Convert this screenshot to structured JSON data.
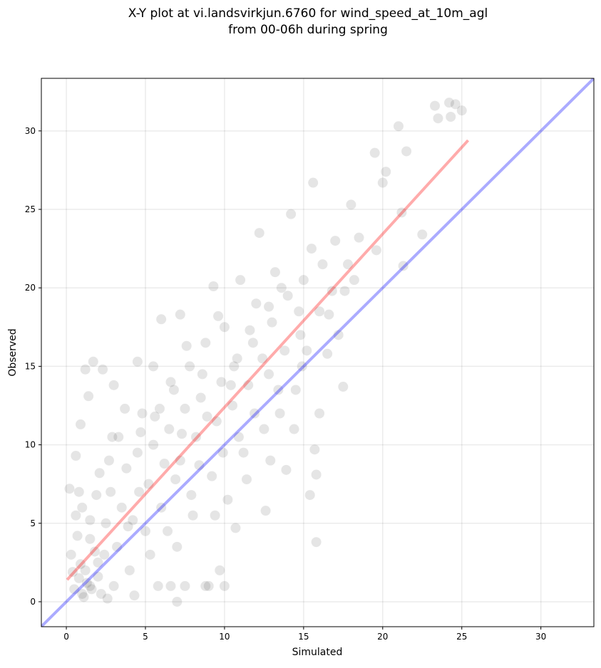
{
  "chart_data": {
    "type": "scatter",
    "title": [
      "X-Y plot at vi.landsvirkjun.6760 for wind_speed_at_10m_agl",
      "from 00-06h during spring"
    ],
    "xlabel": "Simulated",
    "ylabel": "Observed",
    "xlim": [
      -1.58,
      33.35
    ],
    "ylim": [
      -1.59,
      33.35
    ],
    "xticks": [
      0,
      5,
      10,
      15,
      20,
      25,
      30
    ],
    "yticks": [
      0,
      5,
      10,
      15,
      20,
      25,
      30
    ],
    "grid": true,
    "point_color": "#000000",
    "point_opacity": 0.1,
    "x": [
      0.5,
      0.8,
      1.0,
      1.2,
      1.5,
      0.3,
      0.6,
      0.2,
      1.0,
      1.5,
      2.0,
      2.2,
      1.8,
      2.5,
      2.8,
      3.0,
      3.2,
      3.5,
      3.8,
      4.0,
      4.2,
      4.5,
      4.8,
      5.0,
      5.2,
      5.5,
      5.8,
      6.0,
      6.2,
      6.5,
      6.8,
      7.0,
      7.2,
      7.5,
      7.8,
      8.0,
      8.2,
      8.5,
      8.8,
      9.0,
      9.2,
      9.5,
      9.8,
      10.0,
      10.2,
      10.5,
      10.8,
      11.0,
      11.2,
      11.5,
      11.8,
      12.0,
      12.2,
      12.5,
      12.8,
      13.0,
      13.2,
      13.5,
      13.8,
      14.0,
      14.2,
      14.5,
      14.8,
      15.0,
      15.2,
      15.5,
      15.8,
      16.0,
      16.2,
      16.5,
      16.8,
      17.0,
      17.5,
      17.8,
      18.0,
      18.5,
      19.5,
      19.6,
      20.2,
      20.0,
      21.0,
      21.5,
      21.2,
      21.3,
      22.5,
      23.3,
      24.2,
      24.6,
      25.0,
      24.3,
      23.5,
      15.6,
      15.4,
      12.6,
      10.7,
      6.0,
      7.2,
      9.3,
      1.2,
      1.7,
      2.3,
      1.4,
      0.6,
      0.9,
      3.0,
      4.5,
      5.5,
      9.7,
      10.0,
      6.6,
      7.5,
      7.0,
      8.8,
      2.6,
      4.3,
      0.4,
      1.1,
      1.3,
      0.9,
      1.6,
      2.0,
      2.4,
      0.7,
      1.9,
      2.7,
      3.3,
      3.9,
      4.6,
      5.3,
      5.9,
      6.4,
      6.9,
      7.3,
      7.9,
      8.4,
      8.9,
      9.4,
      9.9,
      10.4,
      10.9,
      11.4,
      11.9,
      12.4,
      12.9,
      13.4,
      13.9,
      14.4,
      14.9,
      15.7,
      15.8,
      16.6,
      17.2,
      18.2,
      17.6,
      16.0,
      14.7,
      13.6,
      12.8,
      11.6,
      10.6,
      9.6,
      8.6,
      7.6,
      6.6,
      5.6,
      4.7,
      3.7,
      2.9,
      2.1,
      1.5,
      0.8
    ],
    "y": [
      0.8,
      1.5,
      0.5,
      2.0,
      1.0,
      3.0,
      5.5,
      7.2,
      6.0,
      4.0,
      2.5,
      0.5,
      3.2,
      5.0,
      7.0,
      1.0,
      3.5,
      6.0,
      8.5,
      2.0,
      5.2,
      9.5,
      12.0,
      4.5,
      7.5,
      10.0,
      1.0,
      6.0,
      8.8,
      11.0,
      13.5,
      3.5,
      9.0,
      12.3,
      15.0,
      5.5,
      10.5,
      13.0,
      16.5,
      1.0,
      8.0,
      11.5,
      14.0,
      17.5,
      6.5,
      12.5,
      15.5,
      20.5,
      9.5,
      13.8,
      16.5,
      19.0,
      23.5,
      11.0,
      14.5,
      17.8,
      21.0,
      12.0,
      16.0,
      19.5,
      24.7,
      13.5,
      17.0,
      20.5,
      16.0,
      22.5,
      3.8,
      18.5,
      21.5,
      15.8,
      19.8,
      23.0,
      13.7,
      21.5,
      25.3,
      23.2,
      28.6,
      22.4,
      27.4,
      26.7,
      30.3,
      28.7,
      24.8,
      21.4,
      23.4,
      31.6,
      31.8,
      31.7,
      31.3,
      30.9,
      30.8,
      26.7,
      6.8,
      5.8,
      4.7,
      18.0,
      18.3,
      20.1,
      14.8,
      15.3,
      14.8,
      13.1,
      9.3,
      11.3,
      13.8,
      15.3,
      15.0,
      2.0,
      1.0,
      1.0,
      1.0,
      0.0,
      1.0,
      0.2,
      0.4,
      1.9,
      0.3,
      1.2,
      2.4,
      0.8,
      1.6,
      3.0,
      4.2,
      6.8,
      9.0,
      10.5,
      4.8,
      7.0,
      3.0,
      12.3,
      4.5,
      7.8,
      10.7,
      6.8,
      8.7,
      11.8,
      5.5,
      9.5,
      13.8,
      10.5,
      7.8,
      12.0,
      15.5,
      9.0,
      13.5,
      8.4,
      11.0,
      15.0,
      9.7,
      8.1,
      18.3,
      17.0,
      20.5,
      19.8,
      12.0,
      18.5,
      20.0,
      18.8,
      17.3,
      15.0,
      18.2,
      14.5,
      16.3,
      14.0,
      11.8,
      10.8,
      12.3,
      10.5,
      8.2,
      5.2,
      7.0
    ],
    "fit_line": {
      "color": "#ff0000",
      "x": [
        0.05,
        25.4
      ],
      "y": [
        1.4,
        29.4
      ]
    },
    "identity_line": {
      "color": "#0000ff",
      "x": [
        -1.6,
        33.4
      ],
      "y": [
        -1.6,
        33.4
      ]
    }
  }
}
